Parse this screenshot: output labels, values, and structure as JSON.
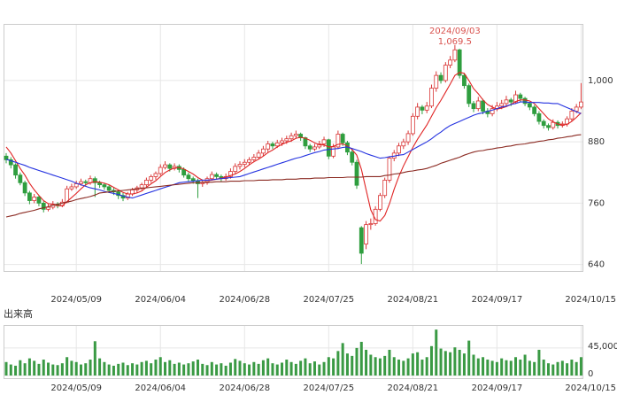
{
  "chart_data": {
    "type": "candlestick",
    "categories": [
      null,
      null,
      null,
      null,
      null,
      null,
      null,
      null,
      null,
      null,
      null,
      null,
      null,
      null,
      null,
      "2024/05/09",
      null,
      null,
      null,
      null,
      null,
      null,
      null,
      null,
      null,
      null,
      null,
      null,
      null,
      null,
      null,
      null,
      null,
      "2024/06/04",
      null,
      null,
      null,
      null,
      null,
      null,
      null,
      null,
      null,
      null,
      null,
      null,
      null,
      null,
      null,
      null,
      null,
      "2024/06/28",
      null,
      null,
      null,
      null,
      null,
      null,
      null,
      null,
      null,
      null,
      null,
      null,
      null,
      null,
      null,
      null,
      null,
      "2024/07/25",
      null,
      null,
      null,
      null,
      null,
      null,
      null,
      null,
      null,
      null,
      null,
      null,
      null,
      null,
      null,
      null,
      null,
      "2024/08/21",
      null,
      null,
      null,
      null,
      null,
      null,
      null,
      null,
      null,
      null,
      null,
      null,
      null,
      null,
      null,
      null,
      null,
      "2024/09/17",
      null,
      null,
      null,
      null,
      null,
      null,
      null,
      null,
      null,
      null,
      null,
      null,
      null,
      null,
      null,
      null,
      null,
      "2024/10/15"
    ],
    "candles": [
      [
        852,
        858,
        838,
        845
      ],
      [
        845,
        850,
        828,
        835
      ],
      [
        835,
        838,
        808,
        815
      ],
      [
        815,
        820,
        795,
        800
      ],
      [
        800,
        804,
        774,
        780
      ],
      [
        780,
        784,
        758,
        765
      ],
      [
        765,
        778,
        760,
        772
      ],
      [
        772,
        775,
        754,
        760
      ],
      [
        760,
        764,
        742,
        748
      ],
      [
        748,
        758,
        744,
        752
      ],
      [
        752,
        764,
        748,
        758
      ],
      [
        758,
        762,
        750,
        755
      ],
      [
        755,
        768,
        752,
        762
      ],
      [
        762,
        794,
        760,
        788
      ],
      [
        788,
        798,
        784,
        792
      ],
      [
        792,
        804,
        788,
        798
      ],
      [
        798,
        808,
        794,
        802
      ],
      [
        802,
        806,
        794,
        800
      ],
      [
        800,
        814,
        796,
        808
      ],
      [
        808,
        812,
        772,
        800
      ],
      [
        800,
        804,
        790,
        796
      ],
      [
        796,
        800,
        786,
        792
      ],
      [
        792,
        796,
        780,
        785
      ],
      [
        785,
        790,
        776,
        782
      ],
      [
        782,
        786,
        768,
        775
      ],
      [
        775,
        780,
        764,
        770
      ],
      [
        770,
        782,
        766,
        778
      ],
      [
        778,
        790,
        774,
        786
      ],
      [
        786,
        794,
        780,
        790
      ],
      [
        790,
        800,
        786,
        796
      ],
      [
        796,
        810,
        792,
        805
      ],
      [
        805,
        816,
        800,
        812
      ],
      [
        812,
        822,
        806,
        818
      ],
      [
        818,
        836,
        814,
        830
      ],
      [
        830,
        842,
        826,
        835
      ],
      [
        835,
        838,
        822,
        828
      ],
      [
        828,
        838,
        824,
        832
      ],
      [
        832,
        836,
        820,
        826
      ],
      [
        826,
        830,
        810,
        815
      ],
      [
        815,
        820,
        802,
        808
      ],
      [
        808,
        812,
        798,
        804
      ],
      [
        804,
        808,
        770,
        798
      ],
      [
        798,
        806,
        792,
        800
      ],
      [
        800,
        812,
        796,
        808
      ],
      [
        808,
        822,
        804,
        816
      ],
      [
        816,
        820,
        806,
        812
      ],
      [
        812,
        816,
        802,
        808
      ],
      [
        808,
        818,
        804,
        812
      ],
      [
        812,
        828,
        808,
        822
      ],
      [
        822,
        838,
        818,
        832
      ],
      [
        832,
        842,
        826,
        836
      ],
      [
        836,
        846,
        830,
        840
      ],
      [
        840,
        850,
        834,
        845
      ],
      [
        845,
        856,
        840,
        850
      ],
      [
        850,
        864,
        846,
        858
      ],
      [
        858,
        872,
        852,
        866
      ],
      [
        866,
        882,
        860,
        876
      ],
      [
        876,
        880,
        866,
        872
      ],
      [
        872,
        884,
        868,
        878
      ],
      [
        878,
        888,
        872,
        882
      ],
      [
        882,
        892,
        876,
        886
      ],
      [
        886,
        898,
        880,
        892
      ],
      [
        892,
        902,
        886,
        895
      ],
      [
        895,
        898,
        882,
        888
      ],
      [
        888,
        890,
        866,
        872
      ],
      [
        872,
        876,
        860,
        866
      ],
      [
        866,
        876,
        862,
        870
      ],
      [
        870,
        882,
        866,
        876
      ],
      [
        876,
        890,
        870,
        884
      ],
      [
        884,
        886,
        846,
        852
      ],
      [
        852,
        876,
        848,
        870
      ],
      [
        870,
        902,
        866,
        895
      ],
      [
        895,
        898,
        872,
        878
      ],
      [
        878,
        882,
        854,
        860
      ],
      [
        860,
        864,
        834,
        840
      ],
      [
        840,
        845,
        788,
        795
      ],
      [
        712,
        715,
        641,
        662
      ],
      [
        680,
        725,
        670,
        718
      ],
      [
        718,
        730,
        708,
        720
      ],
      [
        720,
        754,
        716,
        748
      ],
      [
        748,
        780,
        744,
        775
      ],
      [
        775,
        810,
        770,
        805
      ],
      [
        805,
        852,
        800,
        848
      ],
      [
        848,
        864,
        842,
        858
      ],
      [
        858,
        878,
        852,
        872
      ],
      [
        872,
        886,
        866,
        880
      ],
      [
        880,
        902,
        874,
        896
      ],
      [
        896,
        936,
        892,
        930
      ],
      [
        930,
        956,
        924,
        948
      ],
      [
        948,
        952,
        934,
        942
      ],
      [
        942,
        958,
        936,
        950
      ],
      [
        950,
        992,
        946,
        985
      ],
      [
        985,
        1018,
        978,
        1010
      ],
      [
        1010,
        1016,
        994,
        1000
      ],
      [
        1000,
        1036,
        996,
        1030
      ],
      [
        1030,
        1048,
        1024,
        1040
      ],
      [
        1040,
        1069.5,
        1036,
        1060
      ],
      [
        1060,
        1062,
        1004,
        1010
      ],
      [
        1010,
        1014,
        984,
        990
      ],
      [
        990,
        994,
        948,
        955
      ],
      [
        955,
        960,
        938,
        945
      ],
      [
        945,
        968,
        940,
        960
      ],
      [
        960,
        964,
        934,
        940
      ],
      [
        940,
        946,
        928,
        935
      ],
      [
        935,
        952,
        930,
        945
      ],
      [
        945,
        958,
        940,
        950
      ],
      [
        950,
        962,
        944,
        955
      ],
      [
        955,
        970,
        950,
        962
      ],
      [
        962,
        966,
        950,
        958
      ],
      [
        958,
        980,
        954,
        972
      ],
      [
        972,
        976,
        958,
        965
      ],
      [
        965,
        968,
        950,
        955
      ],
      [
        955,
        958,
        942,
        948
      ],
      [
        948,
        952,
        930,
        935
      ],
      [
        935,
        940,
        914,
        920
      ],
      [
        920,
        924,
        906,
        912
      ],
      [
        912,
        916,
        902,
        908
      ],
      [
        908,
        924,
        904,
        918
      ],
      [
        918,
        922,
        906,
        912
      ],
      [
        912,
        920,
        908,
        915
      ],
      [
        915,
        930,
        910,
        925
      ],
      [
        925,
        946,
        920,
        940
      ],
      [
        940,
        954,
        936,
        948
      ],
      [
        948,
        995,
        944,
        958
      ]
    ],
    "up_color": "#d93636",
    "down_color": "#2f9e3f",
    "ylim": [
      629,
      1109
    ],
    "yticks": [
      640,
      760,
      880,
      {
        "value": 1000,
        "label": "1,000"
      }
    ],
    "grid": true,
    "moving_averages": [
      {
        "color": "#e02424",
        "values": [
          870,
          858,
          843,
          828,
          815,
          799,
          786,
          775,
          765,
          759,
          758,
          755,
          755,
          763,
          771,
          779,
          788,
          796,
          800,
          802,
          801,
          799,
          796,
          791,
          786,
          781,
          778,
          778,
          780,
          784,
          791,
          798,
          804,
          812,
          820,
          825,
          829,
          830,
          827,
          822,
          817,
          810,
          805,
          804,
          805,
          807,
          809,
          811,
          814,
          817,
          822,
          828,
          835,
          841,
          846,
          852,
          859,
          864,
          870,
          875,
          879,
          882,
          887,
          889,
          887,
          883,
          878,
          874,
          874,
          870,
          871,
          875,
          876,
          872,
          865,
          854,
          826,
          786,
          747,
          728,
          725,
          736,
          759,
          787,
          812,
          833,
          851,
          869,
          885,
          899,
          913,
          930,
          947,
          961,
          977,
          993,
          1010,
          1016,
          1014,
          1000,
          984,
          974,
          962,
          953,
          948,
          944,
          946,
          949,
          953,
          959,
          962,
          962,
          960,
          955,
          945,
          935,
          925,
          919,
          915,
          913,
          914,
          920,
          928,
          937
        ]
      },
      {
        "color": "#2432e0",
        "values": [
          846,
          843,
          840,
          837,
          834,
          830,
          827,
          824,
          821,
          818,
          815,
          812,
          809,
          806,
          803,
          799,
          796,
          793,
          790,
          788,
          786,
          783,
          781,
          779,
          777,
          774,
          772,
          770,
          773,
          776,
          779,
          782,
          785,
          788,
          791,
          794,
          797,
          800,
          801,
          802,
          803,
          804,
          805,
          805,
          806,
          807,
          808,
          809,
          810,
          811,
          812,
          815,
          818,
          821,
          824,
          827,
          830,
          833,
          836,
          839,
          842,
          845,
          848,
          850,
          853,
          856,
          859,
          861,
          864,
          865,
          866,
          867,
          869,
          870,
          867,
          864,
          861,
          857,
          854,
          851,
          848,
          849,
          851,
          852,
          854,
          855,
          860,
          865,
          870,
          875,
          880,
          886,
          893,
          899,
          906,
          912,
          916,
          920,
          924,
          928,
          932,
          935,
          937,
          940,
          942,
          945,
          948,
          950,
          953,
          955,
          958,
          958,
          957,
          957,
          957,
          956,
          956,
          955,
          955,
          951,
          947,
          943,
          939,
          935
        ]
      },
      {
        "color": "#8b2a22",
        "values": [
          733,
          735,
          737,
          740,
          742,
          744,
          746,
          749,
          751,
          753,
          756,
          758,
          760,
          762,
          764,
          767,
          769,
          771,
          773,
          776,
          780,
          781,
          782,
          783,
          784,
          785,
          786,
          787,
          788,
          789,
          790,
          791,
          792,
          793,
          794,
          795,
          796,
          797,
          798,
          799,
          800,
          800,
          801,
          801,
          801,
          802,
          802,
          802,
          803,
          803,
          803,
          804,
          804,
          804,
          805,
          805,
          805,
          806,
          806,
          806,
          807,
          807,
          807,
          808,
          808,
          808,
          809,
          809,
          809,
          810,
          810,
          810,
          810,
          811,
          811,
          811,
          811,
          812,
          812,
          812,
          812,
          814,
          815,
          817,
          818,
          820,
          822,
          823,
          825,
          826,
          828,
          831,
          834,
          838,
          841,
          844,
          847,
          850,
          854,
          857,
          860,
          862,
          863,
          865,
          866,
          868,
          869,
          871,
          872,
          874,
          875,
          876,
          878,
          879,
          881,
          882,
          884,
          885,
          887,
          888,
          890,
          891,
          893,
          894
        ]
      }
    ],
    "annotation": {
      "date": "2024/09/03",
      "label": "1,069.5",
      "color": "#d9534f"
    },
    "volume": {
      "label": "出来高",
      "color": "#3a9a44",
      "ylim": [
        0,
        81000
      ],
      "yticks": [
        0,
        {
          "value": 45000,
          "label": "45,000,"
        }
      ],
      "values": [
        22000,
        18000,
        16000,
        25000,
        20000,
        28000,
        24000,
        19000,
        26000,
        21000,
        18000,
        17000,
        20000,
        30000,
        24000,
        22000,
        18000,
        20000,
        26000,
        56000,
        28000,
        22000,
        18000,
        16000,
        19000,
        21000,
        17000,
        20000,
        18000,
        22000,
        24000,
        20000,
        26000,
        30000,
        22000,
        25000,
        19000,
        21000,
        18000,
        20000,
        23000,
        26000,
        19000,
        17000,
        22000,
        18000,
        20000,
        16000,
        21000,
        27000,
        24000,
        20000,
        18000,
        22000,
        19000,
        25000,
        28000,
        20000,
        18000,
        21000,
        26000,
        22000,
        19000,
        24000,
        28000,
        20000,
        23000,
        18000,
        22000,
        30000,
        28000,
        40000,
        53000,
        36000,
        32000,
        45000,
        55000,
        42000,
        34000,
        30000,
        28000,
        32000,
        42000,
        30000,
        26000,
        24000,
        28000,
        36000,
        38000,
        26000,
        30000,
        48000,
        75000,
        44000,
        40000,
        38000,
        46000,
        42000,
        36000,
        57000,
        34000,
        28000,
        30000,
        26000,
        24000,
        22000,
        28000,
        25000,
        24000,
        30000,
        26000,
        34000,
        24000,
        22000,
        42000,
        26000,
        20000,
        18000,
        22000,
        24000,
        20000,
        26000,
        22000,
        30000
      ]
    }
  }
}
